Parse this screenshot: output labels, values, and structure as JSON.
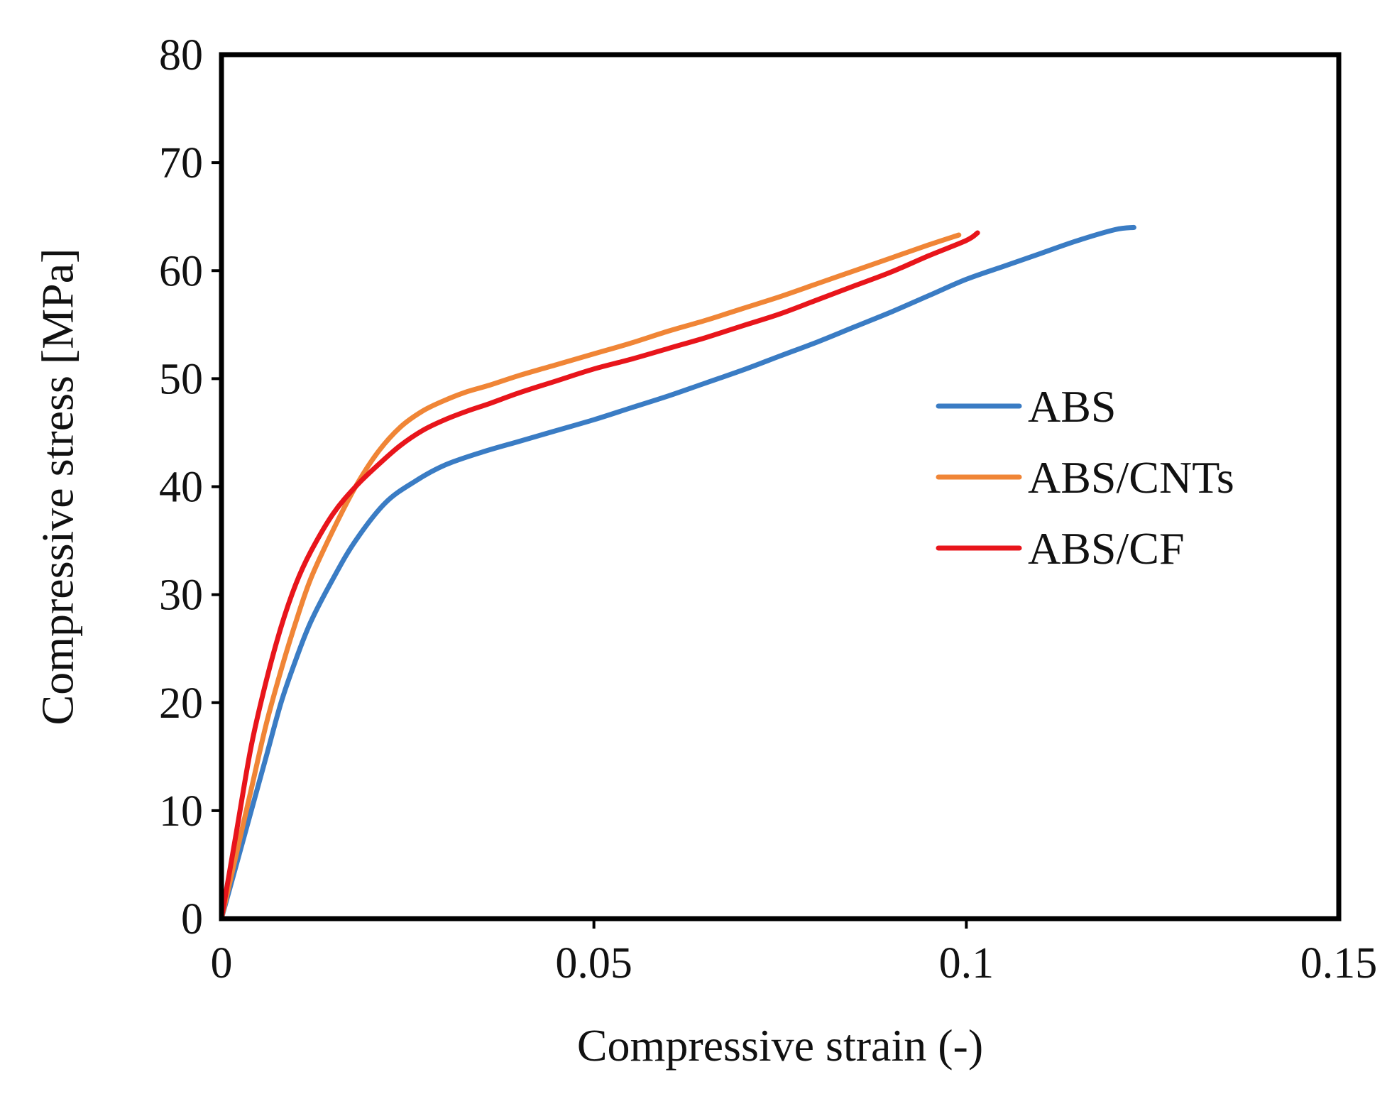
{
  "chart_data": {
    "type": "line",
    "title": "",
    "xlabel": "Compressive strain (-)",
    "ylabel": "Compressive stress [MPa]",
    "xlim": [
      0,
      0.15
    ],
    "ylim": [
      0,
      80
    ],
    "x_ticks": [
      0,
      0.05,
      0.1,
      0.15
    ],
    "x_tick_labels": [
      "0",
      "0.05",
      "0.1",
      "0.15"
    ],
    "y_ticks": [
      0,
      10,
      20,
      30,
      40,
      50,
      60,
      70,
      80
    ],
    "y_tick_labels": [
      "0",
      "10",
      "20",
      "30",
      "40",
      "50",
      "60",
      "70",
      "80"
    ],
    "grid": false,
    "legend_position": "right",
    "series": [
      {
        "name": "ABS",
        "color": "#3a7cc4",
        "x": [
          0,
          0.002,
          0.004,
          0.006,
          0.008,
          0.01,
          0.012,
          0.015,
          0.018,
          0.022,
          0.026,
          0.03,
          0.035,
          0.04,
          0.045,
          0.05,
          0.055,
          0.06,
          0.065,
          0.07,
          0.075,
          0.08,
          0.085,
          0.09,
          0.095,
          0.1,
          0.105,
          0.11,
          0.115,
          0.12,
          0.1225
        ],
        "y": [
          0,
          5,
          10,
          15,
          20,
          24,
          27.5,
          31.5,
          35,
          38.5,
          40.5,
          42,
          43.2,
          44.2,
          45.2,
          46.2,
          47.3,
          48.4,
          49.6,
          50.8,
          52.1,
          53.4,
          54.8,
          56.2,
          57.7,
          59.2,
          60.4,
          61.6,
          62.8,
          63.8,
          64
        ]
      },
      {
        "name": "ABS/CNTs",
        "color": "#f08536",
        "x": [
          0,
          0.002,
          0.004,
          0.006,
          0.008,
          0.01,
          0.012,
          0.015,
          0.018,
          0.021,
          0.024,
          0.027,
          0.03,
          0.033,
          0.036,
          0.04,
          0.045,
          0.05,
          0.055,
          0.06,
          0.065,
          0.07,
          0.075,
          0.08,
          0.085,
          0.09,
          0.095,
          0.099
        ],
        "y": [
          0,
          6,
          12,
          18,
          23,
          27.5,
          31.5,
          36,
          40,
          43.2,
          45.5,
          47,
          48,
          48.8,
          49.4,
          50.3,
          51.3,
          52.3,
          53.3,
          54.4,
          55.4,
          56.5,
          57.6,
          58.8,
          60,
          61.2,
          62.4,
          63.3
        ]
      },
      {
        "name": "ABS/CF",
        "color": "#e8151b",
        "x": [
          0,
          0.002,
          0.004,
          0.006,
          0.008,
          0.01,
          0.012,
          0.015,
          0.018,
          0.021,
          0.024,
          0.027,
          0.03,
          0.033,
          0.036,
          0.04,
          0.045,
          0.05,
          0.055,
          0.06,
          0.065,
          0.07,
          0.075,
          0.08,
          0.085,
          0.09,
          0.095,
          0.1,
          0.1015
        ],
        "y": [
          0,
          8,
          16,
          22,
          27,
          31,
          34,
          37.5,
          40,
          42,
          43.8,
          45.2,
          46.2,
          47,
          47.7,
          48.7,
          49.8,
          50.9,
          51.8,
          52.8,
          53.8,
          54.9,
          56,
          57.3,
          58.6,
          59.9,
          61.4,
          62.8,
          63.5
        ]
      }
    ]
  }
}
